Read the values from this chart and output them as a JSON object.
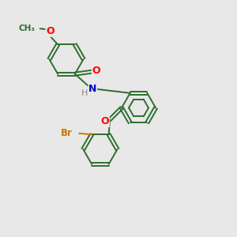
{
  "bg_color": "#e8e8e8",
  "bond_color": "#2d6e2d",
  "atom_colors": {
    "O": "#ff0000",
    "N": "#0000cc",
    "Br": "#cc7700",
    "H": "#888888",
    "C": "#2d6e2d"
  },
  "figsize": [
    3.0,
    3.0
  ],
  "dpi": 100,
  "lw": 1.4,
  "r": 0.72
}
